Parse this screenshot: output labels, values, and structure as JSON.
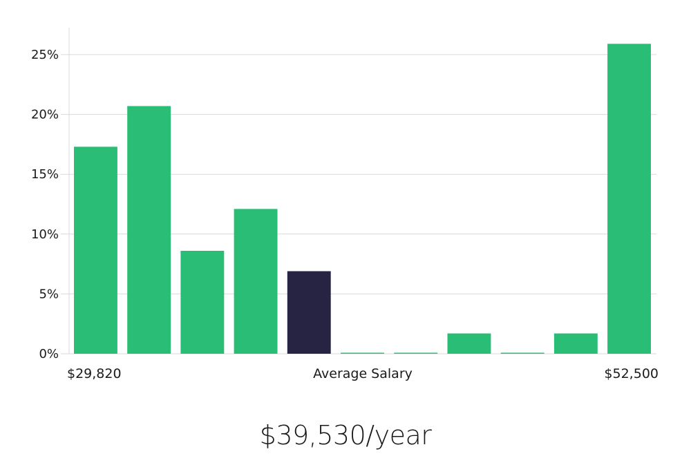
{
  "salary_text": "$39,530/year",
  "colors": {
    "bar": "#2abd76",
    "highlight": "#272443",
    "grid": "#d9d9d9"
  },
  "chart_data": {
    "type": "bar",
    "categories": [
      "1",
      "2",
      "3",
      "4",
      "5",
      "6",
      "7",
      "8",
      "9",
      "10",
      "11"
    ],
    "values": [
      17.3,
      20.7,
      8.6,
      12.1,
      6.9,
      0,
      0,
      1.7,
      0,
      1.7,
      25.9
    ],
    "highlight_index": 4,
    "yticks": [
      "0%",
      "5%",
      "10%",
      "15%",
      "20%",
      "25%"
    ],
    "ytick_values": [
      0,
      5,
      10,
      15,
      20,
      25
    ],
    "ylim": [
      0,
      27
    ],
    "grid": true,
    "x_left_label": "$29,820",
    "x_center_label": "Average Salary",
    "x_right_label": "$52,500"
  }
}
